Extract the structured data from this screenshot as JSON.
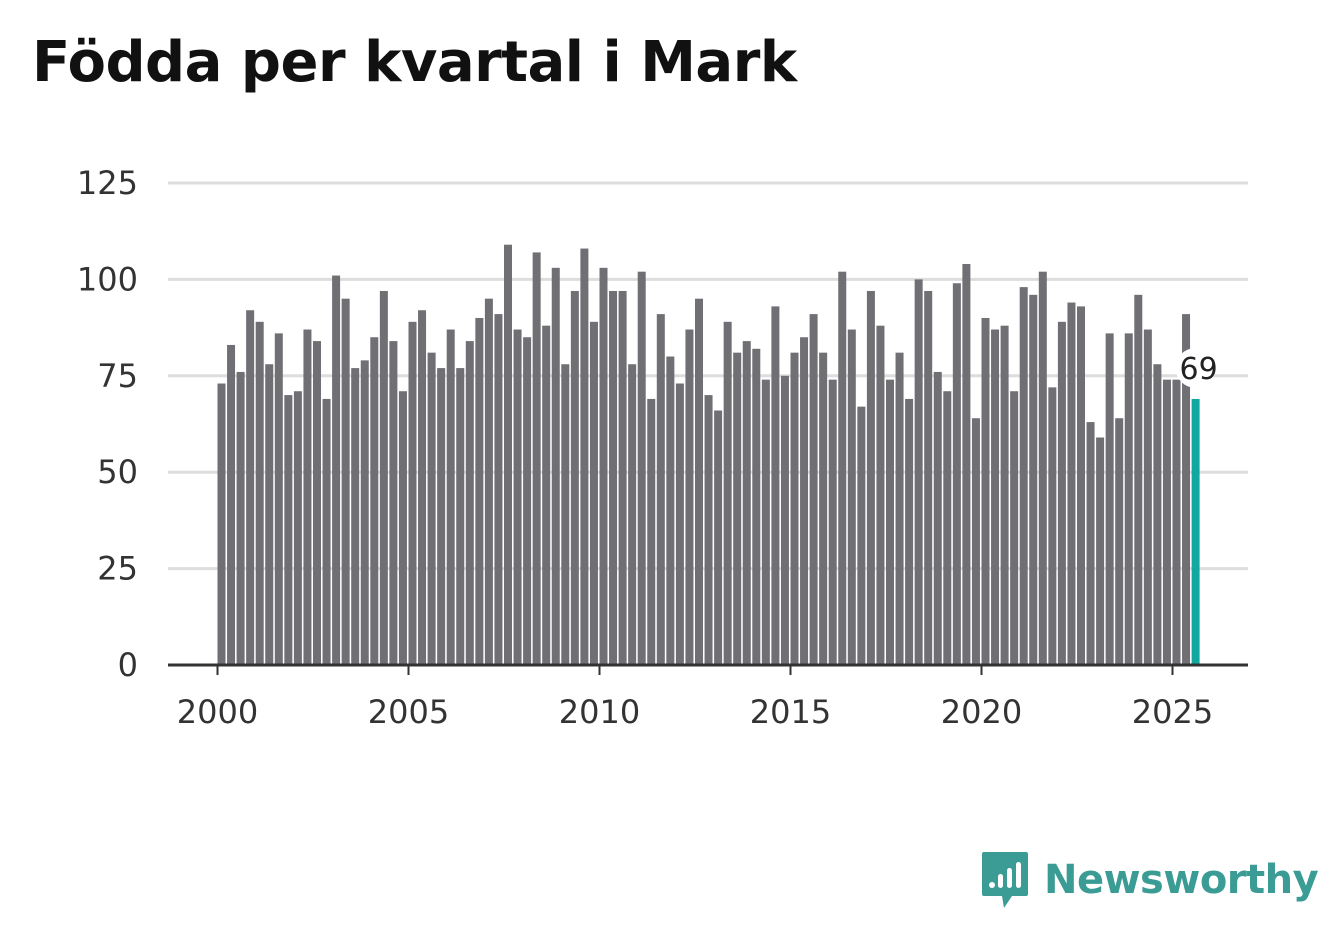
{
  "title": "Födda per kvartal i Mark",
  "brand": {
    "name": "Newsworthy",
    "icon": "newsworthy-logo-icon",
    "color": "#3a9c94"
  },
  "colors": {
    "bar": "#6f6f74",
    "highlight": "#12a8a0",
    "grid": "#dddddd",
    "axis": "#333333"
  },
  "chart_data": {
    "type": "bar",
    "title": "Födda per kvartal i Mark",
    "xlabel": "",
    "ylabel": "",
    "ylim": [
      0,
      125
    ],
    "yticks": [
      "0",
      "25",
      "50",
      "75",
      "100",
      "125"
    ],
    "xticks": [
      "2000",
      "2005",
      "2010",
      "2015",
      "2020",
      "2025"
    ],
    "grid": true,
    "x_start_year": 2000,
    "periods_per_year": 4,
    "values": [
      73,
      83,
      76,
      92,
      89,
      78,
      86,
      70,
      71,
      87,
      84,
      69,
      101,
      95,
      77,
      79,
      85,
      97,
      84,
      71,
      89,
      92,
      81,
      77,
      87,
      77,
      84,
      90,
      95,
      91,
      109,
      87,
      85,
      107,
      88,
      103,
      78,
      97,
      108,
      89,
      103,
      97,
      97,
      78,
      102,
      69,
      91,
      80,
      73,
      87,
      95,
      70,
      66,
      89,
      81,
      84,
      82,
      74,
      93,
      75,
      81,
      85,
      91,
      81,
      74,
      102,
      87,
      67,
      97,
      88,
      74,
      81,
      69,
      100,
      97,
      76,
      71,
      99,
      104,
      64,
      90,
      87,
      88,
      71,
      98,
      96,
      102,
      72,
      89,
      94,
      93,
      63,
      59,
      86,
      64,
      86,
      96,
      87,
      78,
      74,
      74,
      91,
      69
    ],
    "highlight_index": 102,
    "highlight_label": "69"
  }
}
